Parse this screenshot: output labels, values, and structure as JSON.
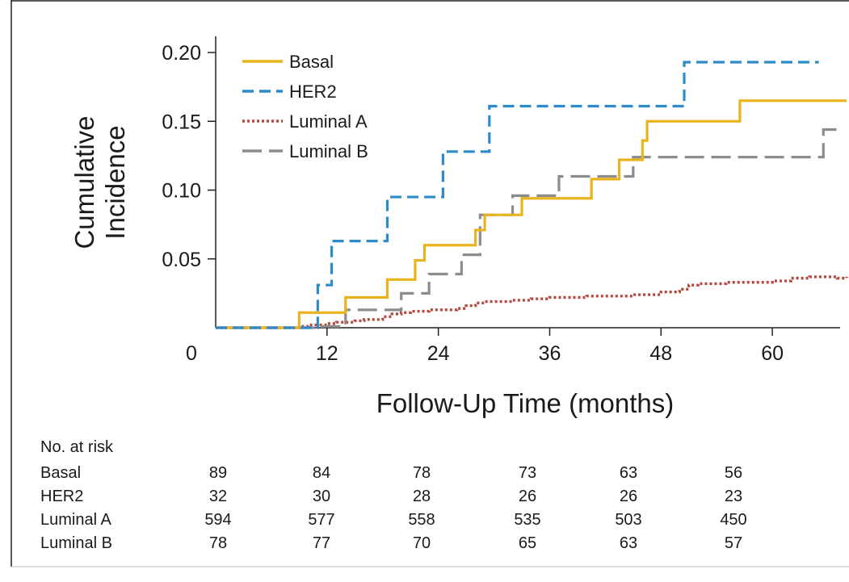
{
  "chart_data": {
    "type": "line",
    "step": true,
    "xlabel": "Follow-Up Time (months)",
    "ylabel_lines": [
      "Cumulative",
      "Incidence"
    ],
    "xlim": [
      0,
      68
    ],
    "ylim": [
      0,
      0.21
    ],
    "x_ticks": [
      {
        "value": 0,
        "label": "0"
      },
      {
        "value": 12,
        "label": "12"
      },
      {
        "value": 24,
        "label": "24"
      },
      {
        "value": 36,
        "label": "36"
      },
      {
        "value": 48,
        "label": "48"
      },
      {
        "value": 60,
        "label": "60"
      }
    ],
    "y_ticks": [
      {
        "value": 0.05,
        "label": "0.05"
      },
      {
        "value": 0.1,
        "label": "0.10"
      },
      {
        "value": 0.15,
        "label": "0.15"
      },
      {
        "value": 0.2,
        "label": "0.20"
      }
    ],
    "legend_position": "top-left",
    "series": [
      {
        "name": "Basal",
        "color": "#e8b31c",
        "dash": "solid",
        "points": [
          [
            0,
            0
          ],
          [
            9,
            0.011
          ],
          [
            14,
            0.022
          ],
          [
            18.5,
            0.035
          ],
          [
            21.5,
            0.049
          ],
          [
            22.5,
            0.06
          ],
          [
            28,
            0.071
          ],
          [
            29,
            0.082
          ],
          [
            33,
            0.094
          ],
          [
            40.5,
            0.108
          ],
          [
            43.5,
            0.122
          ],
          [
            46,
            0.136
          ],
          [
            46.5,
            0.15
          ],
          [
            56.5,
            0.165
          ],
          [
            68,
            0.165
          ]
        ]
      },
      {
        "name": "HER2",
        "color": "#2e8bc9",
        "dash": "dash",
        "points": [
          [
            0,
            0
          ],
          [
            11,
            0.031
          ],
          [
            12.5,
            0.063
          ],
          [
            18.5,
            0.095
          ],
          [
            24.5,
            0.128
          ],
          [
            29.5,
            0.161
          ],
          [
            50.5,
            0.193
          ],
          [
            65,
            0.193
          ]
        ]
      },
      {
        "name": "Luminal A",
        "color": "#b5473e",
        "dash": "dot",
        "points": [
          [
            0,
            0
          ],
          [
            9,
            0.001
          ],
          [
            10,
            0.002
          ],
          [
            12,
            0.003
          ],
          [
            13,
            0.004
          ],
          [
            15,
            0.005
          ],
          [
            16,
            0.006
          ],
          [
            18,
            0.008
          ],
          [
            19,
            0.01
          ],
          [
            20,
            0.011
          ],
          [
            21,
            0.012
          ],
          [
            23,
            0.013
          ],
          [
            26,
            0.014
          ],
          [
            27,
            0.016
          ],
          [
            28,
            0.018
          ],
          [
            29,
            0.019
          ],
          [
            32,
            0.02
          ],
          [
            34,
            0.021
          ],
          [
            36,
            0.022
          ],
          [
            38,
            0.022
          ],
          [
            40,
            0.023
          ],
          [
            42,
            0.023
          ],
          [
            45,
            0.024
          ],
          [
            47,
            0.024
          ],
          [
            48,
            0.026
          ],
          [
            50,
            0.028
          ],
          [
            51,
            0.031
          ],
          [
            52,
            0.032
          ],
          [
            55,
            0.033
          ],
          [
            58,
            0.033
          ],
          [
            60,
            0.034
          ],
          [
            62,
            0.036
          ],
          [
            64,
            0.037
          ],
          [
            67,
            0.036
          ],
          [
            68,
            0.037
          ]
        ]
      },
      {
        "name": "Luminal B",
        "color": "#8c8c8c",
        "dash": "longdash",
        "points": [
          [
            0,
            0
          ],
          [
            11,
            0.001
          ],
          [
            14,
            0.013
          ],
          [
            20,
            0.025
          ],
          [
            23,
            0.039
          ],
          [
            26.5,
            0.053
          ],
          [
            28.5,
            0.082
          ],
          [
            32,
            0.096
          ],
          [
            37,
            0.11
          ],
          [
            45,
            0.124
          ],
          [
            65.5,
            0.144
          ],
          [
            67,
            0.144
          ]
        ]
      }
    ]
  },
  "risk_table": {
    "title": "No. at risk",
    "rows": [
      {
        "label": "Basal",
        "values": [
          "89",
          "84",
          "78",
          "73",
          "63",
          "56"
        ]
      },
      {
        "label": "HER2",
        "values": [
          "32",
          "30",
          "28",
          "26",
          "26",
          "23"
        ]
      },
      {
        "label": "Luminal A",
        "values": [
          "594",
          "577",
          "558",
          "535",
          "503",
          "450"
        ]
      },
      {
        "label": "Luminal B",
        "values": [
          "78",
          "77",
          "70",
          "65",
          "63",
          "57"
        ]
      }
    ]
  }
}
